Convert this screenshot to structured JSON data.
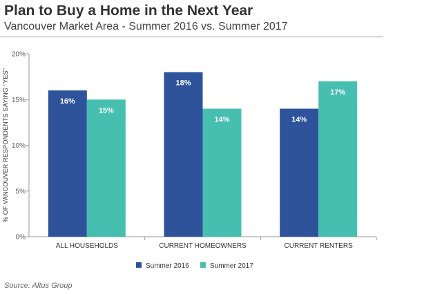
{
  "chart_data": {
    "type": "bar",
    "title": "Plan to Buy a Home in the Next Year",
    "subtitle": "Vancouver Market Area - Summer 2016 vs. Summer 2017",
    "ylabel": "% OF VANCOUVER RESPONDENTS SAYING \"YES\"",
    "xlabel": "",
    "categories": [
      "ALL HOUSEHOLDS",
      "CURRENT HOMEOWNERS",
      "CURRENT RENTERS"
    ],
    "series": [
      {
        "name": "Summer 2016",
        "values": [
          16,
          18,
          14
        ],
        "labels": [
          "16%",
          "18%",
          "14%"
        ],
        "color": "#2e539b"
      },
      {
        "name": "Summer 2017",
        "values": [
          15,
          14,
          17
        ],
        "labels": [
          "15%",
          "14%",
          "17%"
        ],
        "color": "#47bfb0"
      }
    ],
    "ylim": [
      0,
      20
    ],
    "yticks": [
      0,
      5,
      10,
      15,
      20
    ],
    "ytick_labels": [
      "0%",
      "5%",
      "10%",
      "15%",
      "20%"
    ],
    "grid": false,
    "legend_position": "bottom-center",
    "source": "Source: Altus Group"
  }
}
